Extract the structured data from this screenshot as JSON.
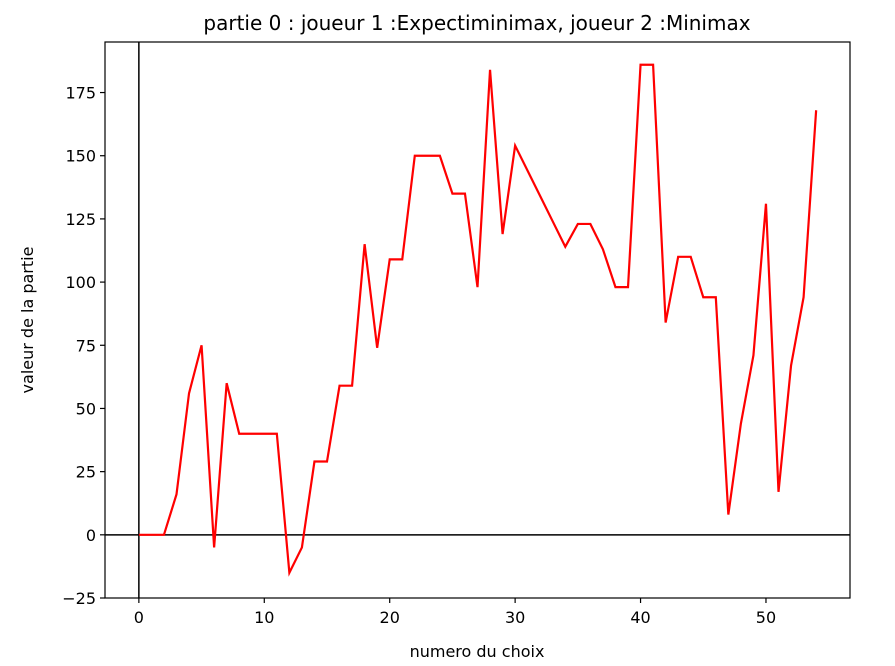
{
  "chart_data": {
    "type": "line",
    "title": "partie 0 : joueur 1 :Expectiminimax, joueur 2 :Minimax",
    "xlabel": "numero du choix",
    "ylabel": "valeur de la partie",
    "xlim": [
      -2.7,
      56.7
    ],
    "ylim": [
      -25,
      195
    ],
    "xticks": [
      0,
      10,
      20,
      30,
      40,
      50
    ],
    "yticks": [
      -25,
      0,
      25,
      50,
      75,
      100,
      125,
      150,
      175
    ],
    "grid": false,
    "series": [
      {
        "color": "#ff0000",
        "x": [
          0,
          1,
          2,
          3,
          4,
          5,
          6,
          7,
          8,
          9,
          10,
          11,
          12,
          13,
          14,
          15,
          16,
          17,
          18,
          19,
          20,
          21,
          22,
          23,
          24,
          25,
          26,
          27,
          28,
          29,
          30,
          31,
          32,
          33,
          34,
          35,
          36,
          37,
          38,
          39,
          40,
          41,
          42,
          43,
          44,
          45,
          46,
          47,
          48,
          49,
          50,
          51,
          52,
          53,
          54
        ],
        "y": [
          0,
          0,
          0,
          16,
          56,
          75,
          -5,
          60,
          40,
          40,
          40,
          40,
          -15,
          -5,
          29,
          29,
          59,
          59,
          115,
          74,
          109,
          109,
          150,
          150,
          150,
          135,
          135,
          98,
          184,
          119,
          154,
          144,
          134,
          124,
          114,
          123,
          123,
          113,
          98,
          98,
          186,
          186,
          84,
          110,
          110,
          94,
          94,
          8,
          44,
          71,
          131,
          17,
          67,
          94,
          168
        ]
      }
    ],
    "reference_lines": {
      "horizontal_at": 0,
      "vertical_at": 0,
      "color": "#000000"
    }
  }
}
